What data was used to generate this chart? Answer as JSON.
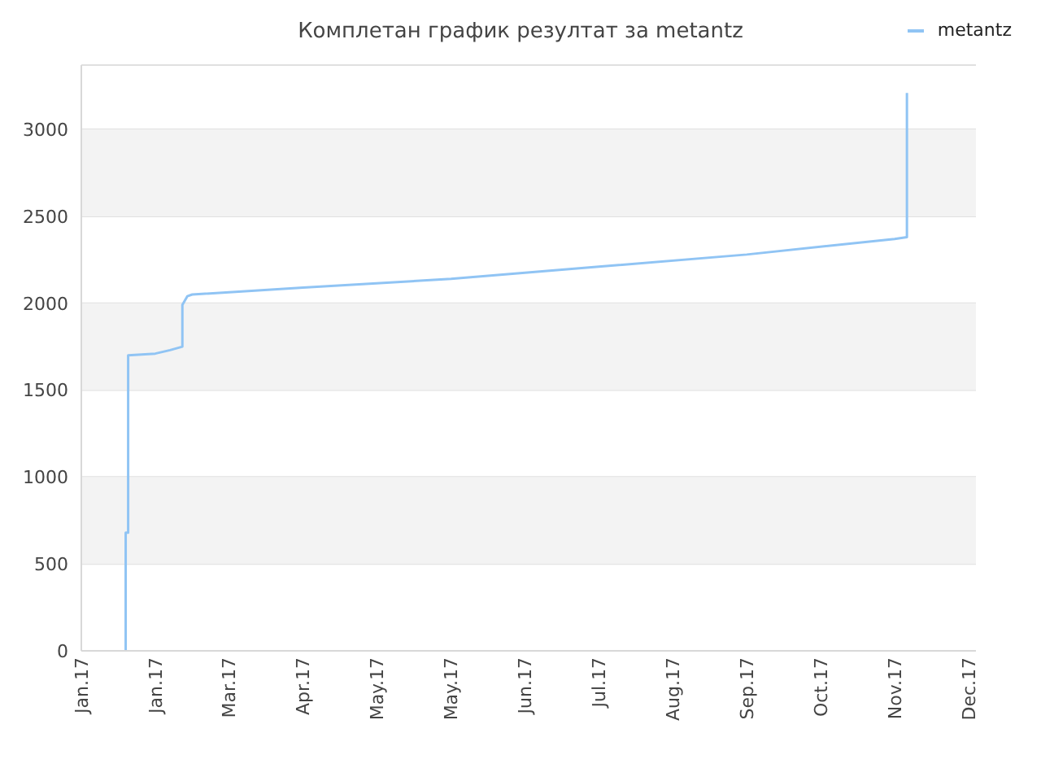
{
  "chart_data": {
    "type": "line",
    "title": "Комплетан график резултат за metantz",
    "series": [
      {
        "name": "metantz",
        "color": "#90c4f4",
        "x": [
          "2017-01-19",
          "2017-01-19",
          "2017-01-20",
          "2017-01-20",
          "2017-01-31",
          "2017-02-06",
          "2017-02-11",
          "2017-02-11",
          "2017-02-13",
          "2017-02-15",
          "2017-04-01",
          "2017-05-31",
          "2017-07-30",
          "2017-09-28",
          "2017-11-27",
          "2017-12-02",
          "2017-12-02"
        ],
        "values": [
          0,
          680,
          680,
          1700,
          1710,
          1730,
          1750,
          1990,
          2040,
          2050,
          2090,
          2140,
          2210,
          2280,
          2370,
          2380,
          3210
        ]
      }
    ],
    "xlim": [
      "2017-01-01",
      "2017-12-30"
    ],
    "xticks": [
      {
        "value": "2017-01-01",
        "label": "Jan.17"
      },
      {
        "value": "2017-01-31",
        "label": "Jan.17"
      },
      {
        "value": "2017-03-02",
        "label": "Mar.17"
      },
      {
        "value": "2017-04-01",
        "label": "Apr.17"
      },
      {
        "value": "2017-05-01",
        "label": "May.17"
      },
      {
        "value": "2017-05-31",
        "label": "May.17"
      },
      {
        "value": "2017-06-30",
        "label": "Jun.17"
      },
      {
        "value": "2017-07-30",
        "label": "Jul.17"
      },
      {
        "value": "2017-08-29",
        "label": "Aug.17"
      },
      {
        "value": "2017-09-28",
        "label": "Sep.17"
      },
      {
        "value": "2017-10-28",
        "label": "Oct.17"
      },
      {
        "value": "2017-11-27",
        "label": "Nov.17"
      },
      {
        "value": "2017-12-27",
        "label": "Dec.17"
      }
    ],
    "ylim": [
      0,
      3370
    ],
    "yticks": [
      0,
      500,
      1000,
      1500,
      2000,
      2500,
      3000
    ],
    "grid": "y",
    "legend": "top right",
    "marker": "none",
    "line_style": "solid"
  }
}
